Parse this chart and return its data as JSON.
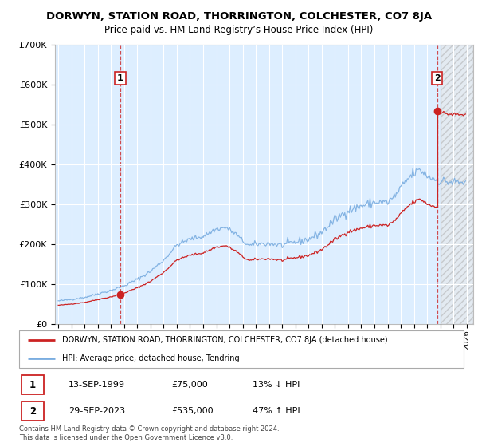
{
  "title": "DORWYN, STATION ROAD, THORRINGTON, COLCHESTER, CO7 8JA",
  "subtitle": "Price paid vs. HM Land Registry’s House Price Index (HPI)",
  "ylabel_ticks": [
    "£0",
    "£100K",
    "£200K",
    "£300K",
    "£400K",
    "£500K",
    "£600K",
    "£700K"
  ],
  "ytick_values": [
    0,
    100000,
    200000,
    300000,
    400000,
    500000,
    600000,
    700000
  ],
  "ylim": [
    0,
    700000
  ],
  "xlim_start": 1994.75,
  "xlim_end": 2026.5,
  "sale1_x": 1999.71,
  "sale1_y": 75000,
  "sale2_x": 2023.75,
  "sale2_y": 535000,
  "legend_line1": "DORWYN, STATION ROAD, THORRINGTON, COLCHESTER, CO7 8JA (detached house)",
  "legend_line2": "HPI: Average price, detached house, Tendring",
  "footer": "Contains HM Land Registry data © Crown copyright and database right 2024.\nThis data is licensed under the Open Government Licence v3.0.",
  "table_rows": [
    {
      "num": "1",
      "date": "13-SEP-1999",
      "price": "£75,000",
      "hpi": "13% ↓ HPI"
    },
    {
      "num": "2",
      "date": "29-SEP-2023",
      "price": "£535,000",
      "hpi": "47% ↑ HPI"
    }
  ],
  "line_color_red": "#cc2222",
  "line_color_blue": "#7aade0",
  "bg_chart": "#ddeeff",
  "bg_hatch": "#cccccc",
  "grid_color": "#ffffff",
  "hatch_start": 2024.0
}
